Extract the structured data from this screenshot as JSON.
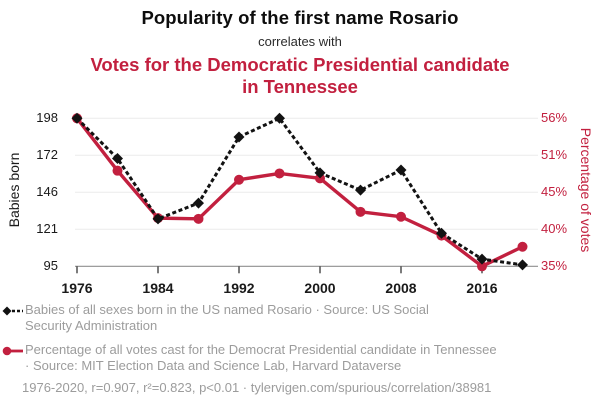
{
  "header": {
    "title": "Popularity of the first name Rosario",
    "subtitle": "correlates with",
    "red_title": "Votes for the Democratic Presidential candidate in Tennessee"
  },
  "colors": {
    "accent_red": "#c2203f",
    "series_black": "#121212",
    "legend_gray": "#9c9c9c",
    "gridline": "#ececec",
    "axis_line": "#8f8f8f"
  },
  "chart_data": {
    "type": "line",
    "x": [
      1976,
      1980,
      1984,
      1988,
      1992,
      1996,
      2000,
      2004,
      2008,
      2012,
      2016,
      2020
    ],
    "series": [
      {
        "name": "Babies of all sexes born in the US named Rosario",
        "axis": "left",
        "values": [
          198,
          170,
          128,
          139,
          185,
          198,
          160,
          148,
          162,
          118,
          100,
          96
        ],
        "color": "#121212",
        "style": "dashed",
        "marker": "diamond"
      },
      {
        "name": "Percentage of all votes cast for the Democrat Presidential candidate in Tennessee",
        "axis": "right",
        "values": [
          55.9,
          48.4,
          41.6,
          41.5,
          47.1,
          48.0,
          47.3,
          42.5,
          41.8,
          39.1,
          34.7,
          37.5
        ],
        "color": "#c2203f",
        "style": "solid",
        "marker": "circle"
      }
    ],
    "ylim_left": [
      95,
      198
    ],
    "ylim_right": [
      34.7,
      55.9
    ],
    "ylabel_left": "Babies born",
    "ylabel_right": "Percentage of votes",
    "y_ticks_left": [
      "198",
      "172",
      "146",
      "121",
      "95"
    ],
    "y_ticks_right": [
      "56%",
      "51%",
      "45%",
      "40%",
      "35%"
    ],
    "x_ticks": [
      "1976",
      "1984",
      "1992",
      "2000",
      "2008",
      "2016"
    ],
    "x_tick_years": [
      1976,
      1984,
      1992,
      2000,
      2008,
      2016
    ],
    "grid": "horizontal",
    "legend_position": "bottom"
  },
  "legend": {
    "items": [
      {
        "marker": "black-diamond-dashed",
        "lines": [
          "Babies of all sexes born in the US named Rosario · Source: US Social",
          "Security Administration"
        ]
      },
      {
        "marker": "red-circle-solid",
        "lines": [
          "Percentage of all votes cast for the Democrat Presidential candidate in Tennessee",
          "· Source: MIT Election Data and Science Lab, Harvard Dataverse"
        ]
      }
    ]
  },
  "footer": {
    "text": "1976-2020, r=0.907, r²=0.823, p<0.01 · tylervigen.com/spurious/correlation/38981"
  }
}
